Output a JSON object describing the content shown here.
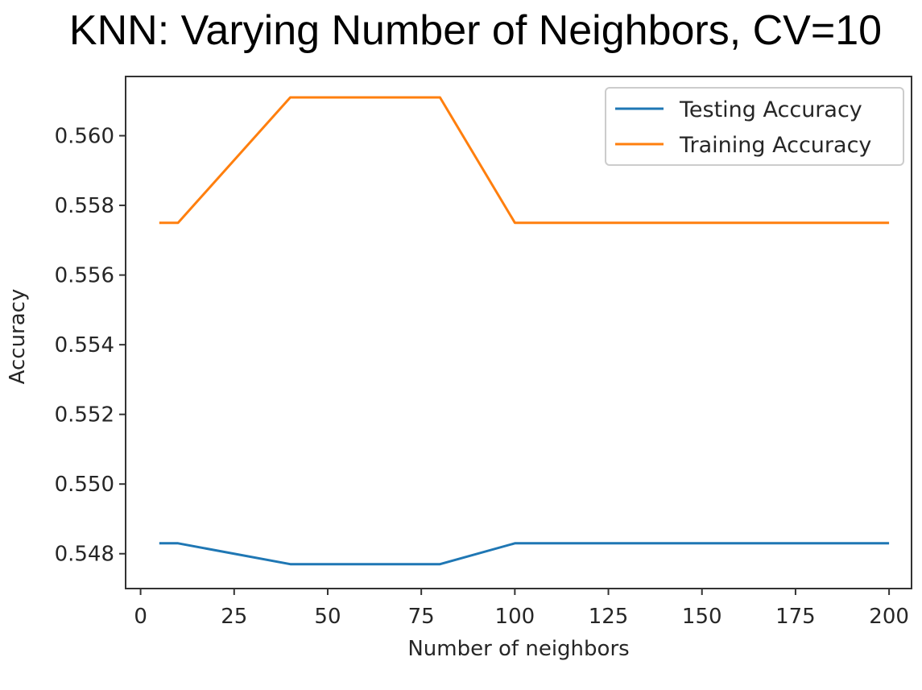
{
  "title": "KNN: Varying Number of Neighbors, CV=10",
  "chart_data": {
    "type": "line",
    "title": "KNN: Varying Number of Neighbors, CV=10",
    "xlabel": "Number of neighbors",
    "ylabel": "Accuracy",
    "xlim": [
      -4,
      206
    ],
    "ylim": [
      0.547,
      0.5617
    ],
    "xticks": [
      0,
      25,
      50,
      75,
      100,
      125,
      150,
      175,
      200
    ],
    "yticks": [
      0.548,
      0.55,
      0.552,
      0.554,
      0.556,
      0.558,
      0.56
    ],
    "grid": false,
    "legend_position": "upper right",
    "series": [
      {
        "name": "Testing Accuracy",
        "color": "#1f77b4",
        "x": [
          5,
          10,
          40,
          80,
          100,
          200
        ],
        "y": [
          0.5483,
          0.5483,
          0.5477,
          0.5477,
          0.5483,
          0.5483
        ]
      },
      {
        "name": "Training Accuracy",
        "color": "#ff7f0e",
        "x": [
          5,
          10,
          40,
          80,
          100,
          200
        ],
        "y": [
          0.5575,
          0.5575,
          0.5611,
          0.5611,
          0.5575,
          0.5575
        ]
      }
    ]
  }
}
